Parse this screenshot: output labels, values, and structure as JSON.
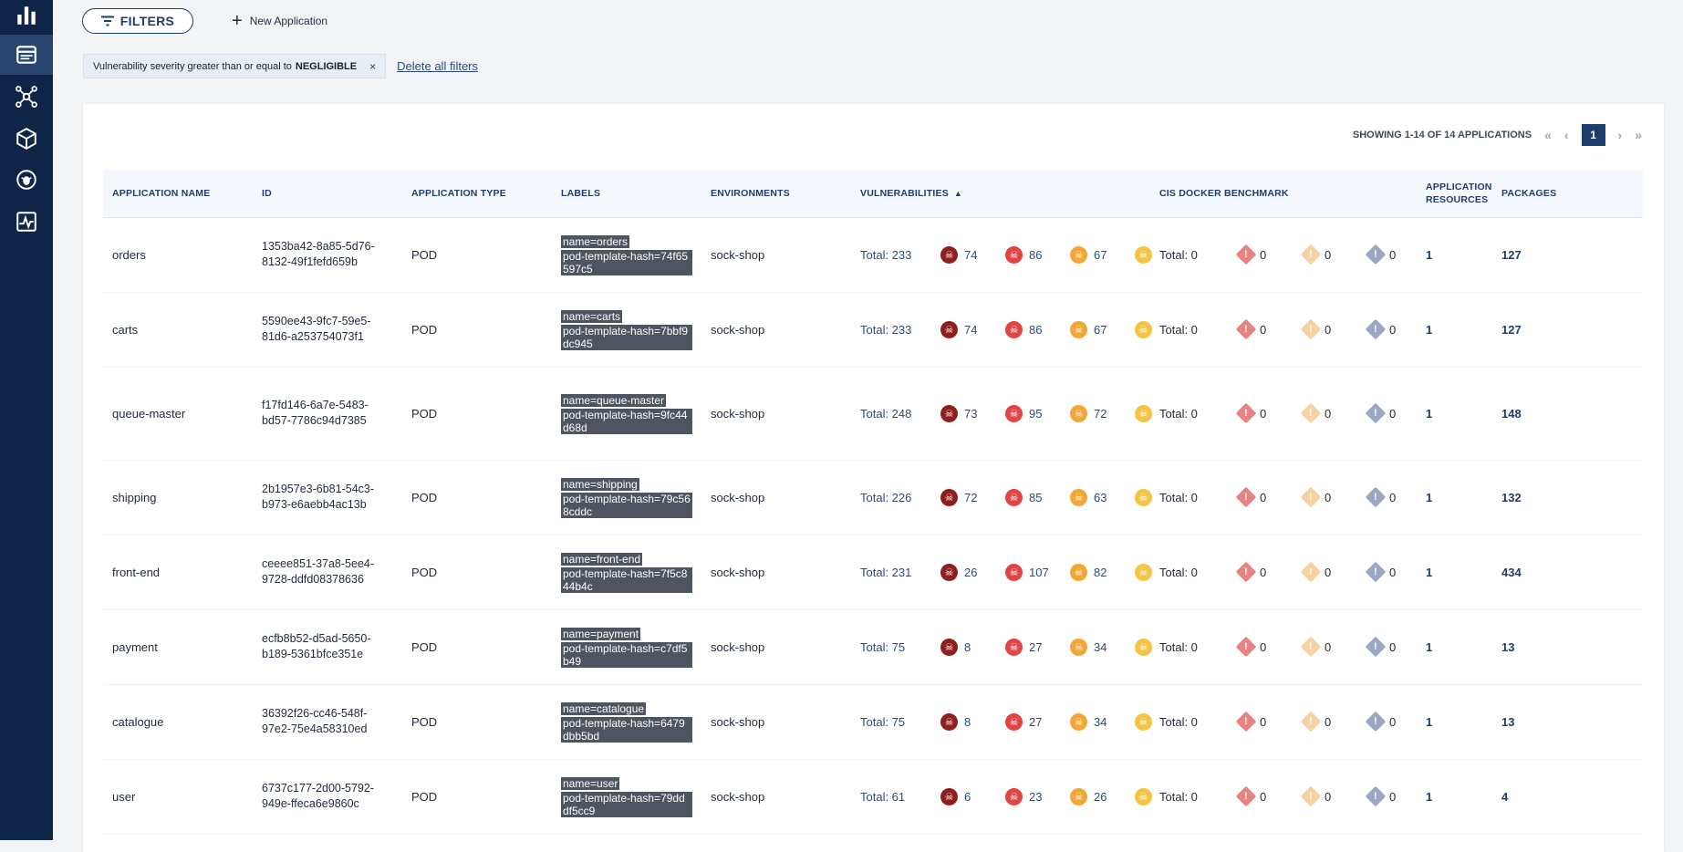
{
  "nav": {
    "items": [
      {
        "icon": "bar-chart-icon"
      },
      {
        "icon": "applications-icon",
        "active": true
      },
      {
        "icon": "network-icon"
      },
      {
        "icon": "package-icon"
      },
      {
        "icon": "bug-shield-icon"
      },
      {
        "icon": "activity-monitor-icon"
      }
    ]
  },
  "toolbar": {
    "filters_label": "FILTERS",
    "new_app_label": "New Application"
  },
  "filters": {
    "chip_text": "Vulnerability severity greater than or equal to",
    "chip_value": "NEGLIGIBLE",
    "chip_close": "×",
    "delete_all": "Delete all filters"
  },
  "pagination": {
    "summary": "SHOWING 1-14 OF 14 APPLICATIONS",
    "first": "«",
    "prev": "‹",
    "current": "1",
    "next": "›",
    "last": "»"
  },
  "table": {
    "headers": {
      "name": "APPLICATION NAME",
      "id": "ID",
      "type": "APPLICATION TYPE",
      "labels": "LABELS",
      "env": "ENVIRONMENTS",
      "vuln": "VULNERABILITIES",
      "vuln_sort": "▲",
      "cis": "CIS DOCKER BENCHMARK",
      "resources_1": "APPLICATION",
      "resources_2": "RESOURCES",
      "packages": "PACKAGES"
    },
    "rows": [
      {
        "name": "orders",
        "id1": "1353ba42-8a85-5d76-",
        "id2": "8132-49f1fefd659b",
        "type": "POD",
        "labels": [
          "name=orders",
          "pod-template-hash=74f65597c5"
        ],
        "env": "sock-shop",
        "vtotal": "Total: 233",
        "crit": "74",
        "high": "86",
        "med": "67",
        "cis_total": "Total: 0",
        "cis_a": "0",
        "cis_b": "0",
        "cis_c": "0",
        "resources": "1",
        "packages": "127"
      },
      {
        "name": "carts",
        "id1": "5590ee43-9fc7-59e5-",
        "id2": "81d6-a253754073f1",
        "type": "POD",
        "labels": [
          "name=carts",
          "pod-template-hash=7bbf9dc945"
        ],
        "env": "sock-shop",
        "vtotal": "Total: 233",
        "crit": "74",
        "high": "86",
        "med": "67",
        "cis_total": "Total: 0",
        "cis_a": "0",
        "cis_b": "0",
        "cis_c": "0",
        "resources": "1",
        "packages": "127"
      },
      {
        "name": "queue-master",
        "id1": "f17fd146-6a7e-5483-",
        "id2": "bd57-7786c94d7385",
        "type": "POD",
        "labels": [
          "name=queue-master",
          "pod-template-hash=9fc44d68d"
        ],
        "env": "sock-shop",
        "vtotal": "Total: 248",
        "crit": "73",
        "high": "95",
        "med": "72",
        "cis_total": "Total: 0",
        "cis_a": "0",
        "cis_b": "0",
        "cis_c": "0",
        "resources": "1",
        "packages": "148"
      },
      {
        "name": "shipping",
        "id1": "2b1957e3-6b81-54c3-",
        "id2": "b973-e6aebb4ac13b",
        "type": "POD",
        "labels": [
          "name=shipping",
          "pod-template-hash=79c568cddc"
        ],
        "env": "sock-shop",
        "vtotal": "Total: 226",
        "crit": "72",
        "high": "85",
        "med": "63",
        "cis_total": "Total: 0",
        "cis_a": "0",
        "cis_b": "0",
        "cis_c": "0",
        "resources": "1",
        "packages": "132"
      },
      {
        "name": "front-end",
        "id1": "ceeee851-37a8-5ee4-",
        "id2": "9728-ddfd08378636",
        "type": "POD",
        "labels": [
          "name=front-end",
          "pod-template-hash=7f5c844b4c"
        ],
        "env": "sock-shop",
        "vtotal": "Total: 231",
        "crit": "26",
        "high": "107",
        "med": "82",
        "cis_total": "Total: 0",
        "cis_a": "0",
        "cis_b": "0",
        "cis_c": "0",
        "resources": "1",
        "packages": "434"
      },
      {
        "name": "payment",
        "id1": "ecfb8b52-d5ad-5650-",
        "id2": "b189-5361bfce351e",
        "type": "POD",
        "labels": [
          "name=payment",
          "pod-template-hash=c7df5b49"
        ],
        "env": "sock-shop",
        "vtotal": "Total: 75",
        "crit": "8",
        "high": "27",
        "med": "34",
        "cis_total": "Total: 0",
        "cis_a": "0",
        "cis_b": "0",
        "cis_c": "0",
        "resources": "1",
        "packages": "13"
      },
      {
        "name": "catalogue",
        "id1": "36392f26-cc46-548f-",
        "id2": "97e2-75e4a58310ed",
        "type": "POD",
        "labels": [
          "name=catalogue",
          "pod-template-hash=6479dbb5bd"
        ],
        "env": "sock-shop",
        "vtotal": "Total: 75",
        "crit": "8",
        "high": "27",
        "med": "34",
        "cis_total": "Total: 0",
        "cis_a": "0",
        "cis_b": "0",
        "cis_c": "0",
        "resources": "1",
        "packages": "13"
      },
      {
        "name": "user",
        "id1": "6737c177-2d00-5792-",
        "id2": "949e-ffeca6e9860c",
        "type": "POD",
        "labels": [
          "name=user",
          "pod-template-hash=79dddf5cc9"
        ],
        "env": "sock-shop",
        "vtotal": "Total: 61",
        "crit": "6",
        "high": "23",
        "med": "26",
        "cis_total": "Total: 0",
        "cis_a": "0",
        "cis_b": "0",
        "cis_c": "0",
        "resources": "1",
        "packages": "4"
      }
    ]
  },
  "colors": {
    "sidebar": "#0f2547",
    "accent": "#1f3d6c",
    "critical": "#8e1f1f",
    "high": "#e04444",
    "medium": "#f2a636",
    "low": "#f4c542"
  }
}
